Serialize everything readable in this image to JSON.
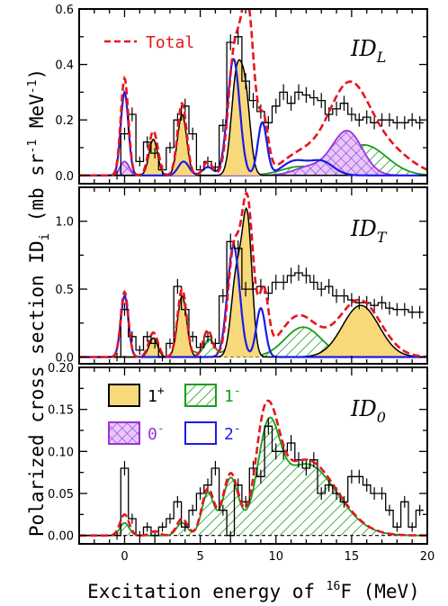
{
  "colors": {
    "total": "#e8141e",
    "one_plus_fill": "#f8d97a",
    "one_minus": "#169e1b",
    "zero_minus": "#9a32d8",
    "two_minus": "#1a1ae8",
    "data": "#000000"
  },
  "figure": {
    "ylabel": "Polarized cross section ID",
    "ylabel_sub": "i",
    "ylabel_units": "(mb sr",
    "ylabel_units_exp": "-1",
    "ylabel_units_mid": " MeV",
    "ylabel_units_exp2": "-1",
    "ylabel_units_end": ")",
    "xlabel": "Excitation energy of ",
    "xlabel_sup": "16",
    "xlabel_end": "F (MeV)"
  },
  "chart_data": [
    {
      "type": "line",
      "panel_label": "ID",
      "panel_label_sub": "L",
      "legend_total": "Total",
      "xlim": [
        -3,
        20
      ],
      "ylim": [
        -0.03,
        0.6
      ],
      "xticks": [
        "0",
        "5",
        "10",
        "15",
        "20"
      ],
      "yticks": [
        "0.0",
        "0.2",
        "0.4",
        "0.6"
      ],
      "ytick_values": [
        0.0,
        0.2,
        0.4,
        0.6
      ],
      "series": [
        {
          "name": "Total",
          "peaks": [
            [
              0.0,
              0.35,
              0.25
            ],
            [
              1.9,
              0.16,
              0.3
            ],
            [
              3.8,
              0.26,
              0.3
            ],
            [
              5.5,
              0.05,
              0.3
            ],
            [
              7.2,
              0.38,
              0.38
            ],
            [
              8.1,
              0.62,
              0.45
            ],
            [
              9.2,
              0.18,
              0.3
            ],
            [
              11.5,
              0.07,
              1.2
            ],
            [
              14.8,
              0.32,
              1.4
            ],
            [
              17.5,
              0.08,
              1.5
            ]
          ]
        },
        {
          "name": "1+",
          "peaks": [
            [
              1.9,
              0.13,
              0.28
            ],
            [
              3.8,
              0.22,
              0.3
            ],
            [
              7.4,
              0.35,
              0.35
            ],
            [
              8.0,
              0.26,
              0.32
            ]
          ]
        },
        {
          "name": "2-",
          "peaks": [
            [
              0.0,
              0.3,
              0.25
            ],
            [
              3.9,
              0.05,
              0.35
            ],
            [
              5.5,
              0.03,
              0.35
            ],
            [
              7.2,
              0.42,
              0.4
            ],
            [
              9.1,
              0.19,
              0.3
            ],
            [
              11.2,
              0.05,
              0.8
            ],
            [
              13.0,
              0.05,
              0.8
            ]
          ]
        },
        {
          "name": "0-",
          "peaks": [
            [
              0.0,
              0.05,
              0.3
            ],
            [
              14.7,
              0.16,
              1.0
            ],
            [
              12.2,
              0.03,
              1.0
            ]
          ]
        },
        {
          "name": "1-",
          "peaks": [
            [
              15.8,
              0.11,
              1.5
            ],
            [
              11.5,
              0.03,
              1.2
            ]
          ]
        }
      ],
      "data_points": [
        [
          -2.5,
          0.0
        ],
        [
          -1.5,
          0.0
        ],
        [
          -0.5,
          0.0
        ],
        [
          0.0,
          0.15
        ],
        [
          0.5,
          0.22
        ],
        [
          1.0,
          0.05
        ],
        [
          1.5,
          0.12
        ],
        [
          2.0,
          0.08
        ],
        [
          2.5,
          0.02
        ],
        [
          3.0,
          0.1
        ],
        [
          3.5,
          0.2
        ],
        [
          4.0,
          0.25
        ],
        [
          4.5,
          0.15
        ],
        [
          5.0,
          0.02
        ],
        [
          5.5,
          0.05
        ],
        [
          6.0,
          0.03
        ],
        [
          6.5,
          0.18
        ],
        [
          7.0,
          0.48
        ],
        [
          7.5,
          0.5
        ],
        [
          8.0,
          0.34
        ],
        [
          8.5,
          0.27
        ],
        [
          9.0,
          0.23
        ],
        [
          9.5,
          0.19
        ],
        [
          10.0,
          0.25
        ],
        [
          10.5,
          0.3
        ],
        [
          11.0,
          0.26
        ],
        [
          11.5,
          0.3
        ],
        [
          12.0,
          0.29
        ],
        [
          12.5,
          0.28
        ],
        [
          13.0,
          0.27
        ],
        [
          13.5,
          0.22
        ],
        [
          14.0,
          0.24
        ],
        [
          14.5,
          0.26
        ],
        [
          15.0,
          0.22
        ],
        [
          15.5,
          0.2
        ],
        [
          16.0,
          0.21
        ],
        [
          16.5,
          0.19
        ],
        [
          17.0,
          0.2
        ],
        [
          17.5,
          0.2
        ],
        [
          18.0,
          0.19
        ],
        [
          18.5,
          0.19
        ],
        [
          19.0,
          0.2
        ],
        [
          19.5,
          0.19
        ]
      ]
    },
    {
      "type": "line",
      "panel_label": "ID",
      "panel_label_sub": "T",
      "xlim": [
        -3,
        20
      ],
      "ylim": [
        -0.05,
        1.25
      ],
      "xticks": [
        "0",
        "5",
        "10",
        "15",
        "20"
      ],
      "yticks": [
        "0.0",
        "0.5",
        "1.0"
      ],
      "ytick_values": [
        0.0,
        0.5,
        1.0
      ],
      "series": [
        {
          "name": "Total",
          "peaks": [
            [
              0.0,
              0.48,
              0.25
            ],
            [
              1.9,
              0.18,
              0.3
            ],
            [
              3.8,
              0.5,
              0.3
            ],
            [
              5.5,
              0.2,
              0.3
            ],
            [
              7.2,
              0.75,
              0.38
            ],
            [
              8.1,
              1.15,
              0.4
            ],
            [
              9.2,
              0.45,
              0.3
            ],
            [
              11.5,
              0.3,
              1.2
            ],
            [
              15.5,
              0.42,
              1.4
            ]
          ]
        },
        {
          "name": "1+",
          "peaks": [
            [
              1.9,
              0.14,
              0.28
            ],
            [
              3.8,
              0.45,
              0.3
            ],
            [
              7.4,
              0.6,
              0.35
            ],
            [
              8.1,
              1.0,
              0.32
            ],
            [
              15.6,
              0.38,
              1.2
            ]
          ]
        },
        {
          "name": "2-",
          "peaks": [
            [
              0.0,
              0.45,
              0.25
            ],
            [
              7.2,
              0.82,
              0.4
            ],
            [
              9.0,
              0.36,
              0.3
            ]
          ]
        },
        {
          "name": "1-",
          "peaks": [
            [
              5.6,
              0.13,
              0.35
            ],
            [
              7.0,
              0.08,
              0.4
            ],
            [
              11.8,
              0.22,
              1.2
            ],
            [
              4.3,
              0.05,
              0.4
            ]
          ]
        }
      ],
      "data_points": [
        [
          -2.5,
          0.0
        ],
        [
          -1.5,
          0.0
        ],
        [
          -0.5,
          0.0
        ],
        [
          0.0,
          0.35
        ],
        [
          0.5,
          0.15
        ],
        [
          1.0,
          0.05
        ],
        [
          1.5,
          0.15
        ],
        [
          2.0,
          0.1
        ],
        [
          2.5,
          0.0
        ],
        [
          3.0,
          0.1
        ],
        [
          3.5,
          0.52
        ],
        [
          4.0,
          0.35
        ],
        [
          4.5,
          0.15
        ],
        [
          5.0,
          0.07
        ],
        [
          5.5,
          0.15
        ],
        [
          6.0,
          0.1
        ],
        [
          6.5,
          0.45
        ],
        [
          7.0,
          0.85
        ],
        [
          7.5,
          0.8
        ],
        [
          8.0,
          0.5
        ],
        [
          8.5,
          0.5
        ],
        [
          9.0,
          0.52
        ],
        [
          9.5,
          0.47
        ],
        [
          10.0,
          0.55
        ],
        [
          10.5,
          0.55
        ],
        [
          11.0,
          0.6
        ],
        [
          11.5,
          0.62
        ],
        [
          12.0,
          0.6
        ],
        [
          12.5,
          0.55
        ],
        [
          13.0,
          0.5
        ],
        [
          13.5,
          0.52
        ],
        [
          14.0,
          0.45
        ],
        [
          14.5,
          0.45
        ],
        [
          15.0,
          0.42
        ],
        [
          15.5,
          0.4
        ],
        [
          16.0,
          0.4
        ],
        [
          16.5,
          0.38
        ],
        [
          17.0,
          0.4
        ],
        [
          17.5,
          0.36
        ],
        [
          18.0,
          0.35
        ],
        [
          18.5,
          0.35
        ],
        [
          19.0,
          0.33
        ],
        [
          19.5,
          0.33
        ]
      ]
    },
    {
      "type": "line",
      "panel_label": "ID",
      "panel_label_sub": "0",
      "legend_entries": [
        "1",
        "1",
        "0",
        "2"
      ],
      "legend_sups": [
        "+",
        "-",
        "-",
        "-"
      ],
      "xlim": [
        -3,
        20
      ],
      "ylim": [
        -0.01,
        0.2
      ],
      "xticks": [
        "0",
        "5",
        "10",
        "15",
        "20"
      ],
      "yticks": [
        "0.00",
        "0.05",
        "0.10",
        "0.15",
        "0.20"
      ],
      "ytick_values": [
        0.0,
        0.05,
        0.1,
        0.15,
        0.2
      ],
      "series": [
        {
          "name": "Total",
          "peaks": [
            [
              0.0,
              0.025,
              0.3
            ],
            [
              2.0,
              0.005,
              0.3
            ],
            [
              3.8,
              0.02,
              0.35
            ],
            [
              5.5,
              0.055,
              0.4
            ],
            [
              7.0,
              0.07,
              0.5
            ],
            [
              9.5,
              0.11,
              0.7
            ],
            [
              12.0,
              0.09,
              2.0
            ],
            [
              9.0,
              0.02,
              0.4
            ]
          ]
        },
        {
          "name": "1-",
          "peaks": [
            [
              0.0,
              0.015,
              0.3
            ],
            [
              3.8,
              0.015,
              0.35
            ],
            [
              5.5,
              0.05,
              0.4
            ],
            [
              7.0,
              0.065,
              0.5
            ],
            [
              9.5,
              0.1,
              0.7
            ],
            [
              12.0,
              0.085,
              2.0
            ]
          ]
        }
      ],
      "data_points": [
        [
          -2.5,
          0.0
        ],
        [
          -1.5,
          0.0
        ],
        [
          -0.5,
          0.0
        ],
        [
          0.0,
          0.08
        ],
        [
          0.5,
          0.02
        ],
        [
          1.0,
          0.0
        ],
        [
          1.5,
          0.01
        ],
        [
          2.0,
          0.0
        ],
        [
          2.5,
          0.01
        ],
        [
          3.0,
          0.02
        ],
        [
          3.5,
          0.04
        ],
        [
          4.0,
          0.01
        ],
        [
          4.5,
          0.03
        ],
        [
          5.0,
          0.05
        ],
        [
          5.5,
          0.06
        ],
        [
          6.0,
          0.08
        ],
        [
          6.5,
          0.03
        ],
        [
          7.0,
          0.0
        ],
        [
          7.5,
          0.06
        ],
        [
          8.0,
          0.04
        ],
        [
          8.5,
          0.08
        ],
        [
          9.0,
          0.07
        ],
        [
          9.5,
          0.13
        ],
        [
          10.0,
          0.1
        ],
        [
          10.5,
          0.1
        ],
        [
          11.0,
          0.11
        ],
        [
          11.5,
          0.09
        ],
        [
          12.0,
          0.08
        ],
        [
          12.5,
          0.09
        ],
        [
          13.0,
          0.05
        ],
        [
          13.5,
          0.06
        ],
        [
          14.0,
          0.05
        ],
        [
          14.5,
          0.04
        ],
        [
          15.0,
          0.07
        ],
        [
          15.5,
          0.07
        ],
        [
          16.0,
          0.06
        ],
        [
          16.5,
          0.05
        ],
        [
          17.0,
          0.05
        ],
        [
          17.5,
          0.03
        ],
        [
          18.0,
          0.01
        ],
        [
          18.5,
          0.04
        ],
        [
          19.0,
          0.01
        ],
        [
          19.5,
          0.03
        ]
      ]
    }
  ]
}
